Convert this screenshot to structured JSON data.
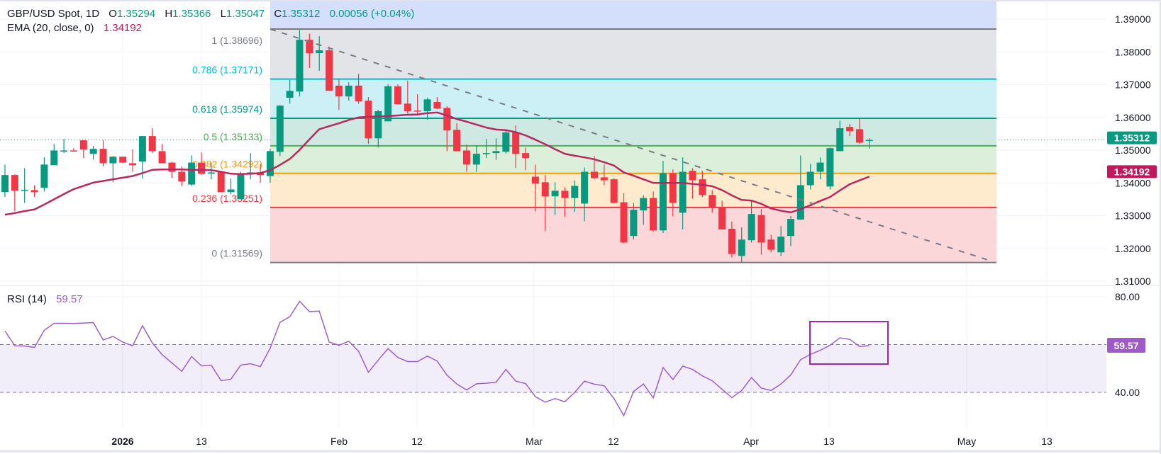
{
  "header": {
    "symbol": "GBP/USD Spot, 1D",
    "open_label": "O",
    "open": "1.35294",
    "high_label": "H",
    "high": "1.35366",
    "low_label": "L",
    "low": "1.35047",
    "close_label": "C",
    "close": "1.35312",
    "change": "0.00056 (+0.04%)"
  },
  "ema": {
    "label": "EMA (20, close, 0)",
    "value": "1.34192",
    "color": "#c2185b"
  },
  "rsi": {
    "label": "RSI (14)",
    "value": "59.57",
    "color": "#9c5fd0",
    "band": [
      40,
      60
    ]
  },
  "price_axis": {
    "ticks": [
      "1.39000",
      "1.38000",
      "1.37000",
      "1.36000",
      "1.35000",
      "1.34000",
      "1.33000",
      "1.32000",
      "1.31000"
    ],
    "current_price": "1.35312",
    "ema_badge": "1.34192"
  },
  "rsi_axis": {
    "ticks": [
      "80.00",
      "40.00"
    ],
    "badge": "59.57"
  },
  "time_axis": {
    "labels": [
      "2026",
      "13",
      "Feb",
      "12",
      "Mar",
      "12",
      "Apr",
      "13",
      "May",
      "13"
    ],
    "bold": [
      "2026"
    ]
  },
  "fibonacci": [
    {
      "label": "1 (1.38696)",
      "level": 1,
      "price": 1.38696,
      "color": "#787b86",
      "fill": "#e3e4e7"
    },
    {
      "label": "0.786 (1.37171)",
      "level": 0.786,
      "price": 1.37171,
      "color": "#00bcd4",
      "fill": "#ccf0f5"
    },
    {
      "label": "0.618 (1.35974)",
      "level": 0.618,
      "price": 1.35974,
      "color": "#089981",
      "fill": "#cde9e2"
    },
    {
      "label": "0.5 (1.35133)",
      "level": 0.5,
      "price": 1.35133,
      "color": "#4caf50",
      "fill": "#dcefdb"
    },
    {
      "label": "0.382 (1.34292)",
      "level": 0.382,
      "price": 1.34292,
      "color": "#ff9800",
      "fill": "#feeacc"
    },
    {
      "label": "0.236 (1.33251)",
      "level": 0.236,
      "price": 1.33251,
      "color": "#f23645",
      "fill": "#fcd7da"
    },
    {
      "label": "0 (1.31569)",
      "level": 0,
      "price": 1.31569,
      "color": "#787b86",
      "fill": null
    }
  ],
  "colors": {
    "up": "#089981",
    "down": "#f23645",
    "ema_line": "#b7295f",
    "rsi_line": "#9c5fd0",
    "extension_fill": "#d3dffb",
    "trendline": "#787b86",
    "highlight_box": "#9c27b0"
  },
  "chart_data": {
    "type": "candlestick",
    "title": "GBP/USD Spot, 1D",
    "ylim": [
      1.31,
      1.39
    ],
    "grid": true,
    "candles_ohlc": [
      [
        1.3372,
        1.3456,
        1.3357,
        1.3424
      ],
      [
        1.3424,
        1.3426,
        1.3313,
        1.3376
      ],
      [
        1.3378,
        1.3445,
        1.3339,
        1.3379
      ],
      [
        1.3378,
        1.3393,
        1.3357,
        1.3372
      ],
      [
        1.3385,
        1.3478,
        1.3374,
        1.3456
      ],
      [
        1.3454,
        1.3519,
        1.3454,
        1.3499
      ],
      [
        1.3497,
        1.3534,
        1.3491,
        1.3499
      ],
      [
        1.3499,
        1.3506,
        1.3497,
        1.3497
      ],
      [
        1.353,
        1.353,
        1.3476,
        1.3502
      ],
      [
        1.3489,
        1.3513,
        1.3471,
        1.3504
      ],
      [
        1.3504,
        1.353,
        1.345,
        1.346
      ],
      [
        1.346,
        1.3482,
        1.3402,
        1.348
      ],
      [
        1.348,
        1.348,
        1.346,
        1.3462
      ],
      [
        1.346,
        1.3502,
        1.3434,
        1.3454
      ],
      [
        1.3465,
        1.3543,
        1.3413,
        1.3543
      ],
      [
        1.3543,
        1.3567,
        1.3491,
        1.3497
      ],
      [
        1.3497,
        1.3519,
        1.346,
        1.346
      ],
      [
        1.3462,
        1.3465,
        1.3415,
        1.3434
      ],
      [
        1.3434,
        1.345,
        1.3391,
        1.3404
      ],
      [
        1.3395,
        1.3484,
        1.3391,
        1.3462
      ],
      [
        1.3462,
        1.3493,
        1.3424,
        1.3428
      ],
      [
        1.343,
        1.3462,
        1.3411,
        1.3432
      ],
      [
        1.3434,
        1.3434,
        1.3372,
        1.3372
      ],
      [
        1.3372,
        1.3413,
        1.3365,
        1.338
      ],
      [
        1.335,
        1.3434,
        1.335,
        1.3428
      ],
      [
        1.3426,
        1.3491,
        1.3411,
        1.3432
      ],
      [
        1.3432,
        1.3458,
        1.34,
        1.3424
      ],
      [
        1.3421,
        1.3504,
        1.34,
        1.3497
      ],
      [
        1.3495,
        1.3638,
        1.3482,
        1.3636
      ],
      [
        1.366,
        1.3714,
        1.3642,
        1.3681
      ],
      [
        1.3679,
        1.3867,
        1.3664,
        1.3837
      ],
      [
        1.3837,
        1.3856,
        1.3751,
        1.3796
      ],
      [
        1.3796,
        1.3848,
        1.3742,
        1.3805
      ],
      [
        1.3805,
        1.3816,
        1.3681,
        1.3681
      ],
      [
        1.3697,
        1.3716,
        1.3623,
        1.3664
      ],
      [
        1.3664,
        1.3707,
        1.3651,
        1.3697
      ],
      [
        1.3697,
        1.3733,
        1.3642,
        1.3649
      ],
      [
        1.3651,
        1.3662,
        1.3519,
        1.3536
      ],
      [
        1.3536,
        1.3623,
        1.3508,
        1.3619
      ],
      [
        1.3588,
        1.3701,
        1.3588,
        1.3695
      ],
      [
        1.3695,
        1.3701,
        1.364,
        1.364
      ],
      [
        1.3642,
        1.3712,
        1.3612,
        1.3619
      ],
      [
        1.3621,
        1.3671,
        1.3606,
        1.3619
      ],
      [
        1.3619,
        1.366,
        1.3593,
        1.3655
      ],
      [
        1.3647,
        1.3662,
        1.3625,
        1.3627
      ],
      [
        1.3629,
        1.3634,
        1.3497,
        1.356
      ],
      [
        1.3562,
        1.3582,
        1.3497,
        1.3497
      ],
      [
        1.3499,
        1.3517,
        1.3434,
        1.3456
      ],
      [
        1.3456,
        1.3515,
        1.3434,
        1.3489
      ],
      [
        1.3489,
        1.3534,
        1.3476,
        1.3491
      ],
      [
        1.3491,
        1.3536,
        1.3471,
        1.3497
      ],
      [
        1.3495,
        1.3564,
        1.3489,
        1.3554
      ],
      [
        1.3554,
        1.3575,
        1.3445,
        1.3489
      ],
      [
        1.3491,
        1.3508,
        1.3439,
        1.3476
      ],
      [
        1.3419,
        1.3456,
        1.3313,
        1.3398
      ],
      [
        1.3402,
        1.3424,
        1.3253,
        1.3359
      ],
      [
        1.3359,
        1.3402,
        1.3302,
        1.3376
      ],
      [
        1.3376,
        1.3387,
        1.3296,
        1.3354
      ],
      [
        1.3354,
        1.3408,
        1.3311,
        1.3391
      ],
      [
        1.3337,
        1.3447,
        1.3283,
        1.3434
      ],
      [
        1.3434,
        1.3482,
        1.3411,
        1.3415
      ],
      [
        1.3417,
        1.3456,
        1.3393,
        1.3408
      ],
      [
        1.3411,
        1.3415,
        1.3337,
        1.3339
      ],
      [
        1.3341,
        1.3369,
        1.3216,
        1.3218
      ],
      [
        1.3238,
        1.3339,
        1.3227,
        1.3318
      ],
      [
        1.3316,
        1.3363,
        1.3272,
        1.3354
      ],
      [
        1.3354,
        1.3374,
        1.3251,
        1.3255
      ],
      [
        1.3255,
        1.3467,
        1.3247,
        1.343
      ],
      [
        1.343,
        1.3441,
        1.3298,
        1.3339
      ],
      [
        1.3309,
        1.3478,
        1.3258,
        1.3434
      ],
      [
        1.3437,
        1.3445,
        1.3352,
        1.3408
      ],
      [
        1.3411,
        1.3437,
        1.3357,
        1.3363
      ],
      [
        1.3363,
        1.3378,
        1.3309,
        1.3324
      ],
      [
        1.3326,
        1.3346,
        1.3258,
        1.3258
      ],
      [
        1.326,
        1.3282,
        1.3172,
        1.3183
      ],
      [
        1.3177,
        1.3264,
        1.3157,
        1.3227
      ],
      [
        1.3225,
        1.3346,
        1.3218,
        1.3305
      ],
      [
        1.3302,
        1.332,
        1.3181,
        1.3218
      ],
      [
        1.3227,
        1.3242,
        1.3188,
        1.3196
      ],
      [
        1.3188,
        1.3268,
        1.3177,
        1.3236
      ],
      [
        1.3238,
        1.3299,
        1.3207,
        1.329
      ],
      [
        1.3288,
        1.3484,
        1.3287,
        1.3393
      ],
      [
        1.3393,
        1.3458,
        1.338,
        1.3434
      ],
      [
        1.3434,
        1.3478,
        1.3411,
        1.3462
      ],
      [
        1.3389,
        1.3508,
        1.338,
        1.3506
      ],
      [
        1.3497,
        1.359,
        1.3497,
        1.3567
      ],
      [
        1.3571,
        1.358,
        1.3543,
        1.3558
      ],
      [
        1.3564,
        1.3595,
        1.3519,
        1.3523
      ],
      [
        1.35294,
        1.35366,
        1.35047,
        1.35312
      ]
    ],
    "ema20": [
      1.3303,
      1.3308,
      1.3314,
      1.3319,
      1.3334,
      1.335,
      1.3366,
      1.3381,
      1.3391,
      1.3401,
      1.3406,
      1.3411,
      1.3416,
      1.3421,
      1.343,
      1.344,
      1.3441,
      1.3441,
      1.3441,
      1.344,
      1.344,
      1.3439,
      1.3434,
      1.3428,
      1.3427,
      1.3428,
      1.343,
      1.3439,
      1.3455,
      1.3473,
      1.3501,
      1.3533,
      1.3564,
      1.3573,
      1.3582,
      1.3592,
      1.36,
      1.3602,
      1.3603,
      1.3604,
      1.3606,
      1.3608,
      1.3609,
      1.3613,
      1.3615,
      1.3606,
      1.3595,
      1.3587,
      1.3578,
      1.3569,
      1.3563,
      1.3561,
      1.3555,
      1.3545,
      1.3532,
      1.3518,
      1.3503,
      1.3489,
      1.3483,
      1.3478,
      1.3472,
      1.3463,
      1.3453,
      1.3432,
      1.3422,
      1.3411,
      1.34,
      1.34,
      1.34,
      1.34,
      1.3397,
      1.3394,
      1.339,
      1.3378,
      1.3362,
      1.3348,
      1.3346,
      1.3336,
      1.3322,
      1.3315,
      1.331,
      1.332,
      1.3332,
      1.3345,
      1.3357,
      1.3377,
      1.3396,
      1.3408,
      1.34192
    ],
    "rsi14": [
      65.7,
      59.5,
      59.4,
      58.8,
      66.0,
      68.9,
      68.9,
      68.8,
      69.0,
      69.2,
      61.9,
      63.4,
      61.0,
      59.5,
      67.9,
      60.7,
      55.8,
      52.3,
      48.8,
      55.0,
      51.1,
      51.4,
      44.9,
      45.5,
      51.4,
      52.0,
      50.8,
      58.5,
      69.3,
      71.7,
      78.1,
      73.8,
      74.0,
      61.1,
      59.7,
      61.4,
      57.2,
      48.4,
      53.5,
      58.3,
      54.6,
      52.9,
      52.9,
      55.2,
      53.1,
      47.2,
      43.5,
      41.0,
      43.6,
      43.8,
      44.3,
      49.6,
      44.7,
      43.7,
      38.2,
      35.9,
      37.4,
      36.1,
      40.0,
      44.7,
      43.4,
      42.8,
      37.4,
      30.3,
      40.4,
      43.5,
      37.7,
      50.4,
      45.4,
      51.0,
      49.6,
      46.9,
      44.9,
      41.3,
      37.8,
      40.8,
      46.2,
      41.8,
      40.8,
      43.5,
      47.3,
      53.7,
      55.9,
      57.6,
      59.7,
      62.8,
      62.2,
      59.2,
      59.57
    ],
    "rsi_ylim": [
      40,
      80
    ]
  }
}
